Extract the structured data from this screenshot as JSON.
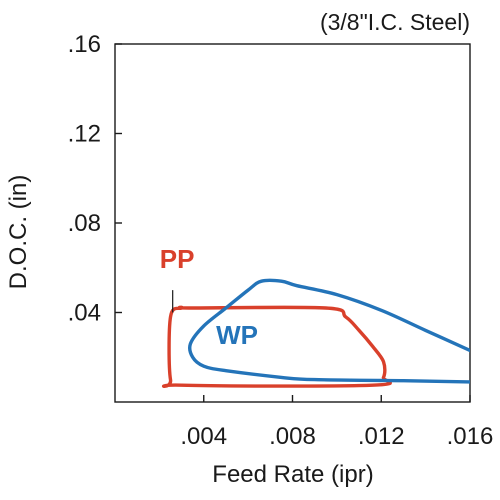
{
  "chart_data": {
    "type": "line",
    "title": "(3/8\"I.C. Steel)",
    "xlabel": "Feed Rate (ipr)",
    "ylabel": "D.O.C. (in)",
    "xlim": [
      0,
      0.016
    ],
    "ylim": [
      0,
      0.16
    ],
    "x_ticks": [
      {
        "value": 0.004,
        "label": ".004"
      },
      {
        "value": 0.008,
        "label": ".008"
      },
      {
        "value": 0.012,
        "label": ".012"
      },
      {
        "value": 0.016,
        "label": ".016"
      }
    ],
    "y_ticks": [
      {
        "value": 0.04,
        "label": ".04"
      },
      {
        "value": 0.08,
        "label": ".08"
      },
      {
        "value": 0.12,
        "label": ".12"
      },
      {
        "value": 0.16,
        "label": ".16"
      }
    ],
    "grid": false,
    "series": [
      {
        "name": "PP",
        "color": "#d9402b",
        "closed": true,
        "points": [
          [
            0.0035,
            0.042
          ],
          [
            0.0095,
            0.042
          ],
          [
            0.0104,
            0.038
          ],
          [
            0.011,
            0.032
          ],
          [
            0.0116,
            0.025
          ],
          [
            0.0121,
            0.018
          ],
          [
            0.0121,
            0.011
          ],
          [
            0.0116,
            0.0075
          ],
          [
            0.003,
            0.0075
          ],
          [
            0.0025,
            0.01
          ],
          [
            0.0025,
            0.038
          ],
          [
            0.003,
            0.042
          ]
        ],
        "label_at": [
          0.0028,
          0.06
        ],
        "leader": [
          [
            0.0026,
            0.05
          ],
          [
            0.0026,
            0.04
          ]
        ]
      },
      {
        "name": "WP",
        "color": "#2474b9",
        "closed": false,
        "points": [
          [
            0.016,
            0.009
          ],
          [
            0.013,
            0.0095
          ],
          [
            0.009,
            0.01
          ],
          [
            0.0075,
            0.011
          ],
          [
            0.005,
            0.014
          ],
          [
            0.004,
            0.016
          ],
          [
            0.0035,
            0.02
          ],
          [
            0.0034,
            0.026
          ],
          [
            0.004,
            0.034
          ],
          [
            0.005,
            0.042
          ],
          [
            0.006,
            0.05
          ],
          [
            0.0066,
            0.054
          ],
          [
            0.0075,
            0.054
          ],
          [
            0.0082,
            0.052
          ],
          [
            0.01,
            0.048
          ],
          [
            0.012,
            0.041
          ],
          [
            0.014,
            0.032
          ],
          [
            0.016,
            0.023
          ]
        ],
        "label_at": [
          0.0055,
          0.026
        ]
      }
    ]
  }
}
